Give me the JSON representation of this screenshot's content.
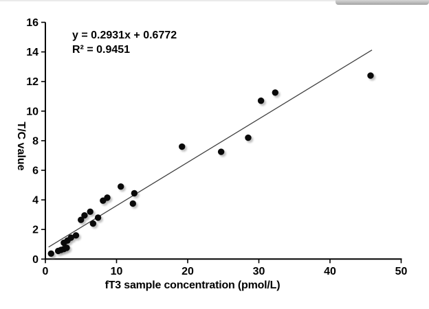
{
  "chart_data": {
    "type": "scatter",
    "title": "",
    "xlabel": "fT3 sample concentration (pmol/L)",
    "ylabel": "T/C value",
    "xlim": [
      0,
      50
    ],
    "ylim": [
      0,
      16
    ],
    "x_ticks": [
      0,
      10,
      20,
      30,
      40,
      50
    ],
    "y_ticks": [
      0,
      2,
      4,
      6,
      8,
      10,
      12,
      14,
      16
    ],
    "grid": false,
    "legend": "none",
    "annotation": {
      "equation": "y = 0.2931x + 0.6772",
      "r_squared": "R² = 0.9451"
    },
    "trendline": {
      "slope": 0.2931,
      "intercept": 0.6772,
      "x_start": 0.45,
      "x_end": 45.9,
      "color": "#3f3f3f"
    },
    "marker": {
      "shape": "circle",
      "color": "#0a0a0a",
      "radius_px": 4.7,
      "shadow": true
    },
    "points": [
      [
        0.8,
        0.37
      ],
      [
        1.8,
        0.55
      ],
      [
        2.2,
        0.62
      ],
      [
        2.6,
        0.68
      ],
      [
        3.0,
        0.76
      ],
      [
        2.6,
        1.1
      ],
      [
        3.1,
        1.25
      ],
      [
        3.6,
        1.45
      ],
      [
        4.3,
        1.6
      ],
      [
        5.0,
        2.65
      ],
      [
        5.5,
        2.95
      ],
      [
        6.3,
        3.2
      ],
      [
        6.7,
        2.4
      ],
      [
        7.4,
        2.8
      ],
      [
        8.1,
        3.95
      ],
      [
        8.7,
        4.15
      ],
      [
        10.6,
        4.9
      ],
      [
        12.3,
        3.75
      ],
      [
        12.5,
        4.45
      ],
      [
        19.2,
        7.6
      ],
      [
        24.7,
        7.25
      ],
      [
        28.5,
        8.2
      ],
      [
        30.3,
        10.7
      ],
      [
        32.3,
        11.25
      ],
      [
        45.7,
        12.4
      ]
    ]
  }
}
